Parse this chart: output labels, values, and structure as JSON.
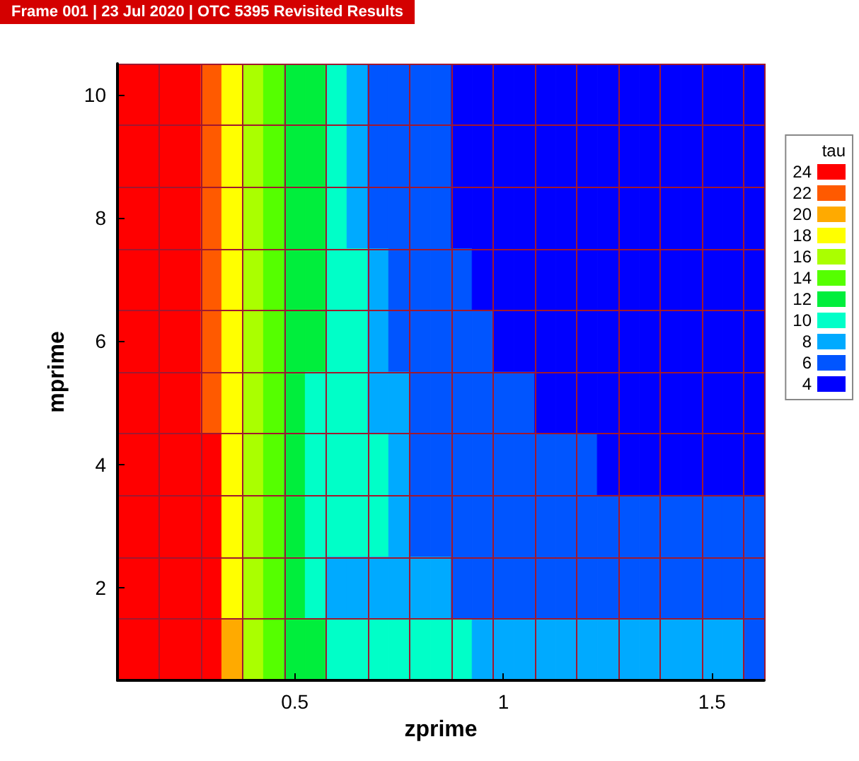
{
  "chart_data": {
    "type": "heatmap",
    "title": "Frame 001 | 23 Jul 2020 | OTC 5395 Revisited Results",
    "xlabel": "zprime",
    "ylabel": "mprime",
    "clabel": "tau",
    "categories": [
      null,
      null,
      null,
      null,
      null,
      null,
      null,
      null,
      "0.5",
      null,
      null,
      null,
      null,
      null,
      null,
      null,
      null,
      null,
      "1",
      null,
      null,
      null,
      null,
      null,
      null,
      null,
      null,
      null,
      "1.5",
      null,
      null
    ],
    "y_categories": [
      "10",
      null,
      "8",
      null,
      "6",
      null,
      "4",
      null,
      "2",
      null
    ],
    "grid": true,
    "cticks": [
      24,
      22,
      20,
      18,
      16,
      14,
      12,
      10,
      8,
      6,
      4
    ],
    "colors": [
      "#ff0000",
      "#ff5a00",
      "#ffaa00",
      "#ffff00",
      "#aaff00",
      "#55ff00",
      "#00ee3c",
      "#00ffc8",
      "#00aaff",
      "#0055ff",
      "#0000ff"
    ],
    "cells": [
      [
        24,
        24,
        24,
        24,
        22,
        18,
        16,
        14,
        12,
        12,
        10,
        8,
        6,
        6,
        6,
        6,
        4,
        4,
        4,
        4,
        4,
        4,
        4,
        4,
        4,
        4,
        4,
        4,
        4,
        4,
        4
      ],
      [
        24,
        24,
        24,
        24,
        22,
        18,
        16,
        14,
        12,
        12,
        10,
        8,
        6,
        6,
        6,
        6,
        4,
        4,
        4,
        4,
        4,
        4,
        4,
        4,
        4,
        4,
        4,
        4,
        4,
        4,
        4
      ],
      [
        24,
        24,
        24,
        24,
        22,
        18,
        16,
        14,
        12,
        12,
        10,
        8,
        6,
        6,
        6,
        6,
        4,
        4,
        4,
        4,
        4,
        4,
        4,
        4,
        4,
        4,
        4,
        4,
        4,
        4,
        4
      ],
      [
        24,
        24,
        24,
        24,
        22,
        18,
        16,
        14,
        12,
        12,
        10,
        10,
        8,
        6,
        6,
        6,
        6,
        4,
        4,
        4,
        4,
        4,
        4,
        4,
        4,
        4,
        4,
        4,
        4,
        4,
        4
      ],
      [
        24,
        24,
        24,
        24,
        22,
        18,
        16,
        14,
        12,
        12,
        10,
        10,
        8,
        6,
        6,
        6,
        6,
        6,
        4,
        4,
        4,
        4,
        4,
        4,
        4,
        4,
        4,
        4,
        4,
        4,
        4
      ],
      [
        24,
        24,
        24,
        24,
        22,
        18,
        16,
        14,
        12,
        10,
        10,
        10,
        8,
        8,
        6,
        6,
        6,
        6,
        6,
        6,
        4,
        4,
        4,
        4,
        4,
        4,
        4,
        4,
        4,
        4,
        4
      ],
      [
        24,
        24,
        24,
        24,
        24,
        18,
        16,
        14,
        12,
        10,
        10,
        10,
        10,
        8,
        6,
        6,
        6,
        6,
        6,
        6,
        6,
        6,
        6,
        4,
        4,
        4,
        4,
        4,
        4,
        4,
        4
      ],
      [
        24,
        24,
        24,
        24,
        24,
        18,
        16,
        14,
        12,
        10,
        10,
        10,
        10,
        8,
        6,
        6,
        6,
        6,
        6,
        6,
        6,
        6,
        6,
        6,
        6,
        6,
        6,
        6,
        6,
        6,
        6
      ],
      [
        24,
        24,
        24,
        24,
        24,
        18,
        16,
        14,
        12,
        10,
        8,
        8,
        8,
        8,
        8,
        8,
        6,
        6,
        6,
        6,
        6,
        6,
        6,
        6,
        6,
        6,
        6,
        6,
        6,
        6,
        6
      ],
      [
        24,
        24,
        24,
        24,
        24,
        20,
        16,
        14,
        12,
        12,
        10,
        10,
        10,
        10,
        10,
        10,
        10,
        8,
        8,
        8,
        8,
        8,
        8,
        8,
        8,
        8,
        8,
        8,
        8,
        8,
        6
      ]
    ]
  }
}
